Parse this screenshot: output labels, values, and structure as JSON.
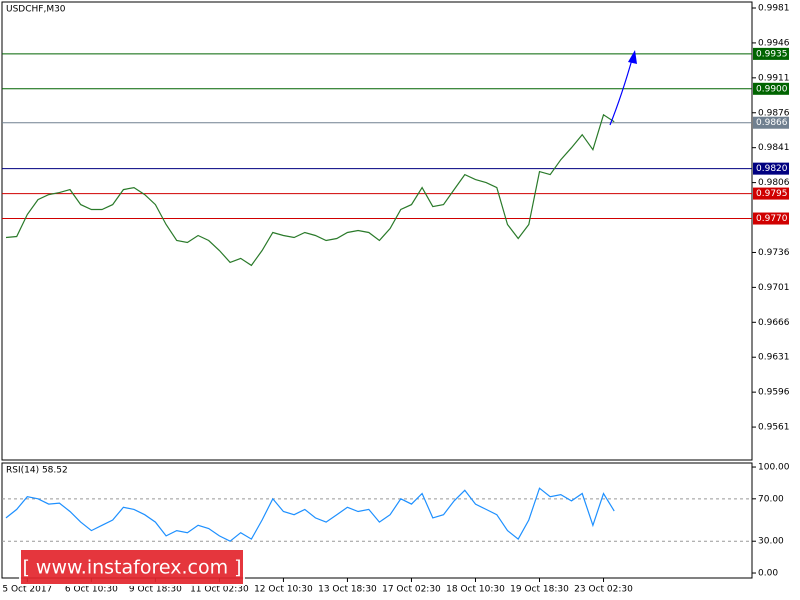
{
  "chart_data": [
    {
      "type": "line",
      "title": "USDCHF,M30",
      "color": "#2a7a2a",
      "categories": [
        null,
        null,
        "5 Oct 2017",
        null,
        null,
        null,
        null,
        null,
        "6 Oct 10:30",
        null,
        null,
        null,
        null,
        null,
        "9 Oct 18:30",
        null,
        null,
        null,
        null,
        null,
        "11 Oct 02:30",
        null,
        null,
        null,
        null,
        null,
        "12 Oct 10:30",
        null,
        null,
        null,
        null,
        null,
        "13 Oct 18:30",
        null,
        null,
        null,
        null,
        null,
        "17 Oct 02:30",
        null,
        null,
        null,
        null,
        null,
        "18 Oct 10:30",
        null,
        null,
        null,
        null,
        null,
        "19 Oct 18:30",
        null,
        null,
        null,
        null,
        null,
        "23 Oct 02:30",
        null
      ],
      "values": [
        0.9751,
        0.9752,
        0.9774,
        0.9789,
        0.9794,
        0.9796,
        0.9799,
        0.9784,
        0.9779,
        0.9779,
        0.9784,
        0.9799,
        0.9801,
        0.9794,
        0.9784,
        0.9764,
        0.9748,
        0.9746,
        0.9753,
        0.9748,
        0.9738,
        0.9726,
        0.973,
        0.9723,
        0.9738,
        0.9756,
        0.9753,
        0.9751,
        0.9756,
        0.9753,
        0.9748,
        0.975,
        0.9756,
        0.9758,
        0.9756,
        0.9748,
        0.976,
        0.9779,
        0.9784,
        0.9801,
        0.9782,
        0.9784,
        0.9799,
        0.9814,
        0.9809,
        0.9806,
        0.9801,
        0.9764,
        0.975,
        0.9764,
        0.9817,
        0.9814,
        0.9829,
        0.9841,
        0.9854,
        0.9839,
        0.9874,
        0.9867
      ],
      "ylim": [
        0.9528,
        0.9987
      ],
      "yticks": [
        0.9981,
        0.9946,
        0.9911,
        0.9876,
        0.9841,
        0.9806,
        0.9736,
        0.9701,
        0.9666,
        0.9631,
        0.9596,
        0.9561
      ],
      "levels": [
        {
          "value": 0.9935,
          "color": "#006400"
        },
        {
          "value": 0.99,
          "label": "0.9900",
          "color": "#006400"
        },
        {
          "value": 0.9866,
          "color": "#708090"
        },
        {
          "value": 0.982,
          "label": "0.9820",
          "color": "#000080"
        },
        {
          "value": 0.9795,
          "color": "#d00000"
        },
        {
          "value": 0.977,
          "label": "0.9770",
          "color": "#d00000"
        }
      ]
    },
    {
      "type": "line",
      "title": "RSI(14) 58.52",
      "color": "#1e90ff",
      "values": [
        52,
        60,
        72,
        70,
        65,
        66,
        58,
        48,
        40,
        45,
        50,
        62,
        60,
        55,
        48,
        35,
        40,
        38,
        45,
        42,
        35,
        30,
        38,
        32,
        50,
        70,
        58,
        55,
        60,
        52,
        48,
        55,
        62,
        58,
        60,
        48,
        55,
        70,
        65,
        75,
        52,
        55,
        68,
        78,
        65,
        60,
        55,
        40,
        32,
        50,
        80,
        72,
        74,
        68,
        75,
        45,
        75,
        58.52
      ],
      "ylim": [
        -4.7,
        103.8
      ],
      "yticks": [
        {
          "value": 100,
          "label": "100.00"
        },
        {
          "value": 70,
          "label": "70.00"
        },
        {
          "value": 30,
          "label": "30.00"
        },
        {
          "value": 0,
          "label": "0.00"
        }
      ],
      "grid": true
    }
  ],
  "watermark": "[ www.instaforex.com ]"
}
